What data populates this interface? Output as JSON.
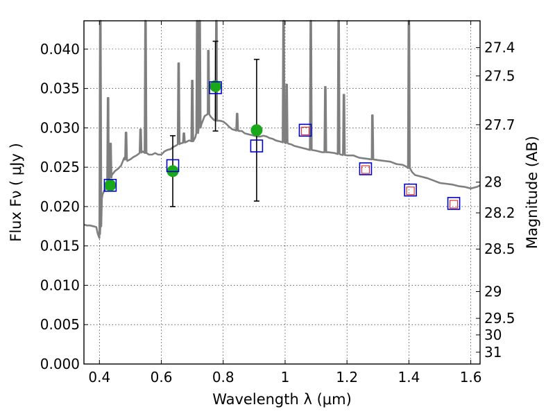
{
  "chart_data": {
    "type": "scatter",
    "title": "",
    "xlabel": "Wavelength  λ (μm)",
    "ylabel": "Flux  Fν  ( μJy )",
    "right_ylabel": "Magnitude (AB)",
    "xlim": [
      0.35,
      1.63
    ],
    "ylim": [
      0.0,
      0.0436
    ],
    "grid": true,
    "x_ticks": [
      {
        "value": 0.4,
        "label": "0.4"
      },
      {
        "value": 0.6,
        "label": "0.6"
      },
      {
        "value": 0.8,
        "label": "0.8"
      },
      {
        "value": 1.0,
        "label": "1"
      },
      {
        "value": 1.2,
        "label": "1.2"
      },
      {
        "value": 1.4,
        "label": "1.4"
      },
      {
        "value": 1.6,
        "label": "1.6"
      }
    ],
    "y_ticks": [
      {
        "value": 0.0,
        "label": "0.000"
      },
      {
        "value": 0.005,
        "label": "0.005"
      },
      {
        "value": 0.01,
        "label": "0.010"
      },
      {
        "value": 0.015,
        "label": "0.015"
      },
      {
        "value": 0.02,
        "label": "0.020"
      },
      {
        "value": 0.025,
        "label": "0.025"
      },
      {
        "value": 0.03,
        "label": "0.030"
      },
      {
        "value": 0.035,
        "label": "0.035"
      },
      {
        "value": 0.04,
        "label": "0.040"
      }
    ],
    "right_ticks": [
      {
        "label": "27.4",
        "flux": 0.0402
      },
      {
        "label": "27.5",
        "flux": 0.0366
      },
      {
        "label": "27.7",
        "flux": 0.0304
      },
      {
        "label": "28",
        "flux": 0.0231
      },
      {
        "label": "28.2",
        "flux": 0.0192
      },
      {
        "label": "28.5",
        "flux": 0.0146
      },
      {
        "label": "29",
        "flux": 0.0092
      },
      {
        "label": "29.5",
        "flux": 0.0058
      },
      {
        "label": "30",
        "flux": 0.0037
      },
      {
        "label": "31",
        "flux": 0.0015
      }
    ],
    "series": [
      {
        "kind": "line",
        "color": "#7f7f7f",
        "points": [
          [
            0.35,
            0.0177
          ],
          [
            0.36,
            0.0176
          ],
          [
            0.37,
            0.0176
          ],
          [
            0.38,
            0.0175
          ],
          [
            0.39,
            0.0174
          ],
          [
            0.395,
            0.0165
          ],
          [
            0.398,
            0.0162
          ],
          [
            0.4,
            0.016
          ],
          [
            0.402,
            0.0165
          ],
          [
            0.404,
            0.0185
          ],
          [
            0.406,
            0.02
          ],
          [
            0.408,
            0.021
          ],
          [
            0.41,
            0.0215
          ],
          [
            0.415,
            0.022
          ],
          [
            0.42,
            0.0222
          ],
          [
            0.425,
            0.0225
          ],
          [
            0.43,
            0.0232
          ],
          [
            0.44,
            0.024
          ],
          [
            0.45,
            0.0245
          ],
          [
            0.46,
            0.0248
          ],
          [
            0.47,
            0.0252
          ],
          [
            0.48,
            0.0262
          ],
          [
            0.49,
            0.0258
          ],
          [
            0.5,
            0.026
          ],
          [
            0.51,
            0.0263
          ],
          [
            0.52,
            0.0265
          ],
          [
            0.53,
            0.0268
          ],
          [
            0.54,
            0.027
          ],
          [
            0.55,
            0.0268
          ],
          [
            0.56,
            0.0266
          ],
          [
            0.57,
            0.0266
          ],
          [
            0.58,
            0.0268
          ],
          [
            0.59,
            0.0266
          ],
          [
            0.6,
            0.0266
          ],
          [
            0.61,
            0.027
          ],
          [
            0.62,
            0.0272
          ],
          [
            0.63,
            0.0273
          ],
          [
            0.64,
            0.0276
          ],
          [
            0.65,
            0.0278
          ],
          [
            0.66,
            0.028
          ],
          [
            0.67,
            0.0281
          ],
          [
            0.68,
            0.0282
          ],
          [
            0.69,
            0.0284
          ],
          [
            0.7,
            0.0283
          ],
          [
            0.71,
            0.0288
          ],
          [
            0.72,
            0.0297
          ],
          [
            0.73,
            0.0305
          ],
          [
            0.74,
            0.0315
          ],
          [
            0.75,
            0.0318
          ],
          [
            0.76,
            0.0314
          ],
          [
            0.77,
            0.031
          ],
          [
            0.78,
            0.0309
          ],
          [
            0.79,
            0.0309
          ],
          [
            0.8,
            0.0308
          ],
          [
            0.81,
            0.0305
          ],
          [
            0.82,
            0.0301
          ],
          [
            0.83,
            0.0298
          ],
          [
            0.84,
            0.0297
          ],
          [
            0.85,
            0.0296
          ],
          [
            0.86,
            0.0296
          ],
          [
            0.87,
            0.0293
          ],
          [
            0.88,
            0.0292
          ],
          [
            0.89,
            0.0291
          ],
          [
            0.9,
            0.029
          ],
          [
            0.91,
            0.0289
          ],
          [
            0.92,
            0.0289
          ],
          [
            0.93,
            0.029
          ],
          [
            0.94,
            0.0289
          ],
          [
            0.95,
            0.0287
          ],
          [
            0.96,
            0.0286
          ],
          [
            0.97,
            0.0284
          ],
          [
            0.98,
            0.0283
          ],
          [
            0.99,
            0.0282
          ],
          [
            1.0,
            0.0281
          ],
          [
            1.01,
            0.028
          ],
          [
            1.02,
            0.0279
          ],
          [
            1.03,
            0.0277
          ],
          [
            1.04,
            0.0276
          ],
          [
            1.05,
            0.0275
          ],
          [
            1.06,
            0.0274
          ],
          [
            1.08,
            0.0272
          ],
          [
            1.1,
            0.0271
          ],
          [
            1.12,
            0.0269
          ],
          [
            1.14,
            0.0269
          ],
          [
            1.16,
            0.0268
          ],
          [
            1.18,
            0.0266
          ],
          [
            1.2,
            0.0265
          ],
          [
            1.22,
            0.0265
          ],
          [
            1.24,
            0.0262
          ],
          [
            1.26,
            0.0261
          ],
          [
            1.28,
            0.026
          ],
          [
            1.3,
            0.0259
          ],
          [
            1.32,
            0.0258
          ],
          [
            1.34,
            0.0257
          ],
          [
            1.36,
            0.0254
          ],
          [
            1.38,
            0.0253
          ],
          [
            1.39,
            0.0251
          ],
          [
            1.4,
            0.0249
          ],
          [
            1.41,
            0.0244
          ],
          [
            1.42,
            0.024
          ],
          [
            1.44,
            0.0238
          ],
          [
            1.46,
            0.0236
          ],
          [
            1.48,
            0.0233
          ],
          [
            1.5,
            0.023
          ],
          [
            1.52,
            0.0229
          ],
          [
            1.54,
            0.0228
          ],
          [
            1.56,
            0.0226
          ],
          [
            1.58,
            0.0225
          ],
          [
            1.6,
            0.0223
          ],
          [
            1.62,
            0.0225
          ],
          [
            1.63,
            0.0227
          ]
        ],
        "emission_lines": [
          {
            "x": 0.403,
            "peak": 0.0436
          },
          {
            "x": 0.428,
            "peak": 0.0338
          },
          {
            "x": 0.436,
            "peak": 0.028
          },
          {
            "x": 0.486,
            "peak": 0.0294
          },
          {
            "x": 0.533,
            "peak": 0.0298
          },
          {
            "x": 0.549,
            "peak": 0.0436
          },
          {
            "x": 0.656,
            "peak": 0.0382
          },
          {
            "x": 0.673,
            "peak": 0.0293
          },
          {
            "x": 0.7,
            "peak": 0.036
          },
          {
            "x": 0.716,
            "peak": 0.0436
          },
          {
            "x": 0.724,
            "peak": 0.0436
          },
          {
            "x": 0.752,
            "peak": 0.0398
          },
          {
            "x": 0.778,
            "peak": 0.0436
          },
          {
            "x": 0.845,
            "peak": 0.0318
          },
          {
            "x": 0.995,
            "peak": 0.0436
          },
          {
            "x": 1.005,
            "peak": 0.0355
          },
          {
            "x": 1.083,
            "peak": 0.0436
          },
          {
            "x": 1.13,
            "peak": 0.0352
          },
          {
            "x": 1.173,
            "peak": 0.0436
          },
          {
            "x": 1.19,
            "peak": 0.0342
          },
          {
            "x": 1.282,
            "peak": 0.0316
          },
          {
            "x": 1.4,
            "peak": 0.0436
          }
        ]
      },
      {
        "kind": "errorbar_points",
        "color": "#1aa81a",
        "points": [
          {
            "x": 0.435,
            "y": 0.0227,
            "err": 0.0
          },
          {
            "x": 0.637,
            "y": 0.0245,
            "err": 0.0045
          },
          {
            "x": 0.775,
            "y": 0.0353,
            "err": 0.0057
          },
          {
            "x": 0.908,
            "y": 0.0297,
            "err": 0.009
          }
        ]
      },
      {
        "kind": "squares_blue",
        "color": "#0000cc",
        "points": [
          {
            "x": 0.435,
            "y": 0.0227
          },
          {
            "x": 0.637,
            "y": 0.0252
          },
          {
            "x": 0.775,
            "y": 0.0351
          },
          {
            "x": 0.908,
            "y": 0.0277
          },
          {
            "x": 1.065,
            "y": 0.0297
          },
          {
            "x": 1.26,
            "y": 0.0248
          },
          {
            "x": 1.405,
            "y": 0.0221
          },
          {
            "x": 1.545,
            "y": 0.0204
          }
        ]
      },
      {
        "kind": "squares_red",
        "color": "#dd3333",
        "points": [
          {
            "x": 1.065,
            "y": 0.0296
          },
          {
            "x": 1.26,
            "y": 0.0247
          },
          {
            "x": 1.405,
            "y": 0.022
          },
          {
            "x": 1.545,
            "y": 0.0203
          }
        ]
      }
    ]
  }
}
